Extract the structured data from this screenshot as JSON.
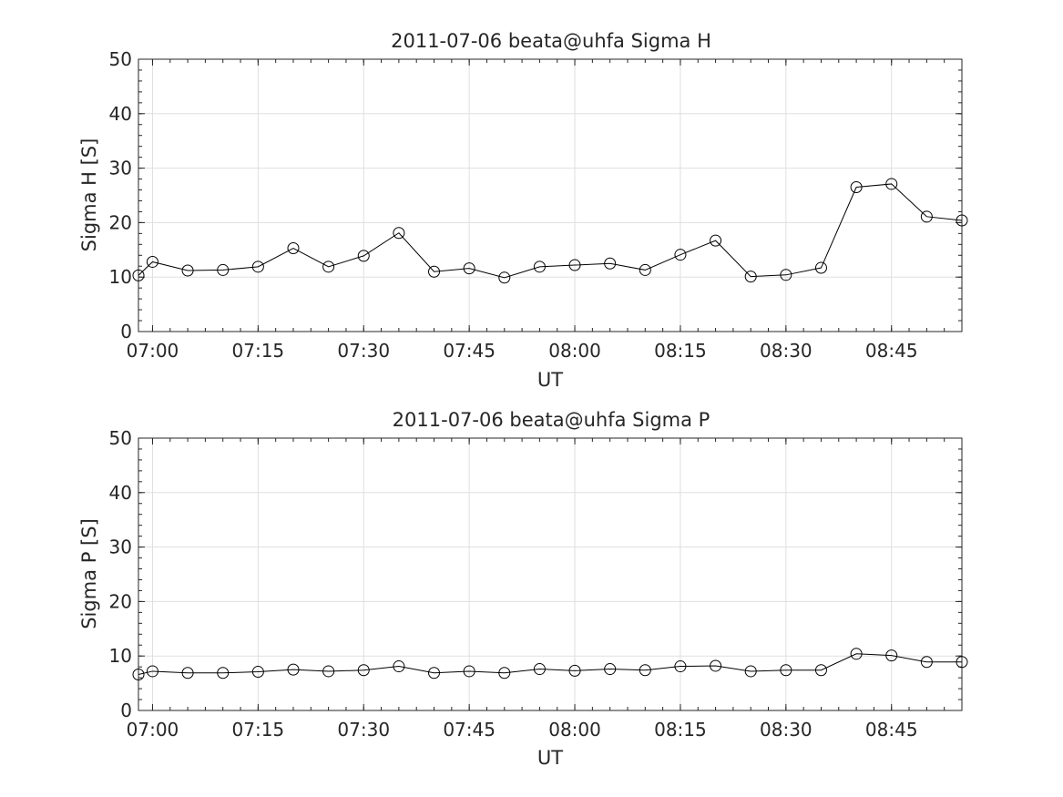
{
  "chart_data": [
    {
      "type": "line",
      "title": "2011-07-06  beata@uhfa Sigma H",
      "xlabel": "UT",
      "ylabel": "Sigma H [S]",
      "xlim": [
        "06:58",
        "08:55"
      ],
      "ylim": [
        0,
        50
      ],
      "x_ticks": [
        "07:00",
        "07:15",
        "07:30",
        "07:45",
        "08:00",
        "08:15",
        "08:30",
        "08:45"
      ],
      "y_ticks": [
        0,
        10,
        20,
        30,
        40,
        50
      ],
      "grid": true,
      "marker": "open-circle",
      "line_color": "#000000",
      "series": [
        {
          "x": [
            "06:58",
            "07:00",
            "07:05",
            "07:10",
            "07:15",
            "07:20",
            "07:25",
            "07:30",
            "07:35",
            "07:40",
            "07:45",
            "07:50",
            "07:55",
            "08:00",
            "08:05",
            "08:10",
            "08:15",
            "08:20",
            "08:25",
            "08:30",
            "08:35",
            "08:40",
            "08:45",
            "08:50",
            "08:55"
          ],
          "values": [
            10.3,
            12.8,
            11.2,
            11.3,
            11.9,
            15.3,
            11.9,
            13.9,
            18.1,
            11.0,
            11.6,
            9.9,
            11.9,
            12.2,
            12.5,
            11.3,
            14.1,
            16.7,
            10.1,
            10.4,
            11.7,
            26.5,
            27.1,
            21.1,
            20.4
          ]
        }
      ]
    },
    {
      "type": "line",
      "title": "2011-07-06  beata@uhfa Sigma P",
      "xlabel": "UT",
      "ylabel": "Sigma P [S]",
      "xlim": [
        "06:58",
        "08:55"
      ],
      "ylim": [
        0,
        50
      ],
      "x_ticks": [
        "07:00",
        "07:15",
        "07:30",
        "07:45",
        "08:00",
        "08:15",
        "08:30",
        "08:45"
      ],
      "y_ticks": [
        0,
        10,
        20,
        30,
        40,
        50
      ],
      "grid": true,
      "marker": "open-circle",
      "line_color": "#000000",
      "series": [
        {
          "x": [
            "06:58",
            "07:00",
            "07:05",
            "07:10",
            "07:15",
            "07:20",
            "07:25",
            "07:30",
            "07:35",
            "07:40",
            "07:45",
            "07:50",
            "07:55",
            "08:00",
            "08:05",
            "08:10",
            "08:15",
            "08:20",
            "08:25",
            "08:30",
            "08:35",
            "08:40",
            "08:45",
            "08:50",
            "08:55"
          ],
          "values": [
            6.6,
            7.2,
            6.9,
            6.9,
            7.1,
            7.5,
            7.2,
            7.4,
            8.1,
            6.9,
            7.2,
            6.9,
            7.6,
            7.3,
            7.6,
            7.4,
            8.1,
            8.2,
            7.2,
            7.4,
            7.4,
            10.4,
            10.1,
            8.9,
            8.9
          ]
        }
      ]
    }
  ]
}
